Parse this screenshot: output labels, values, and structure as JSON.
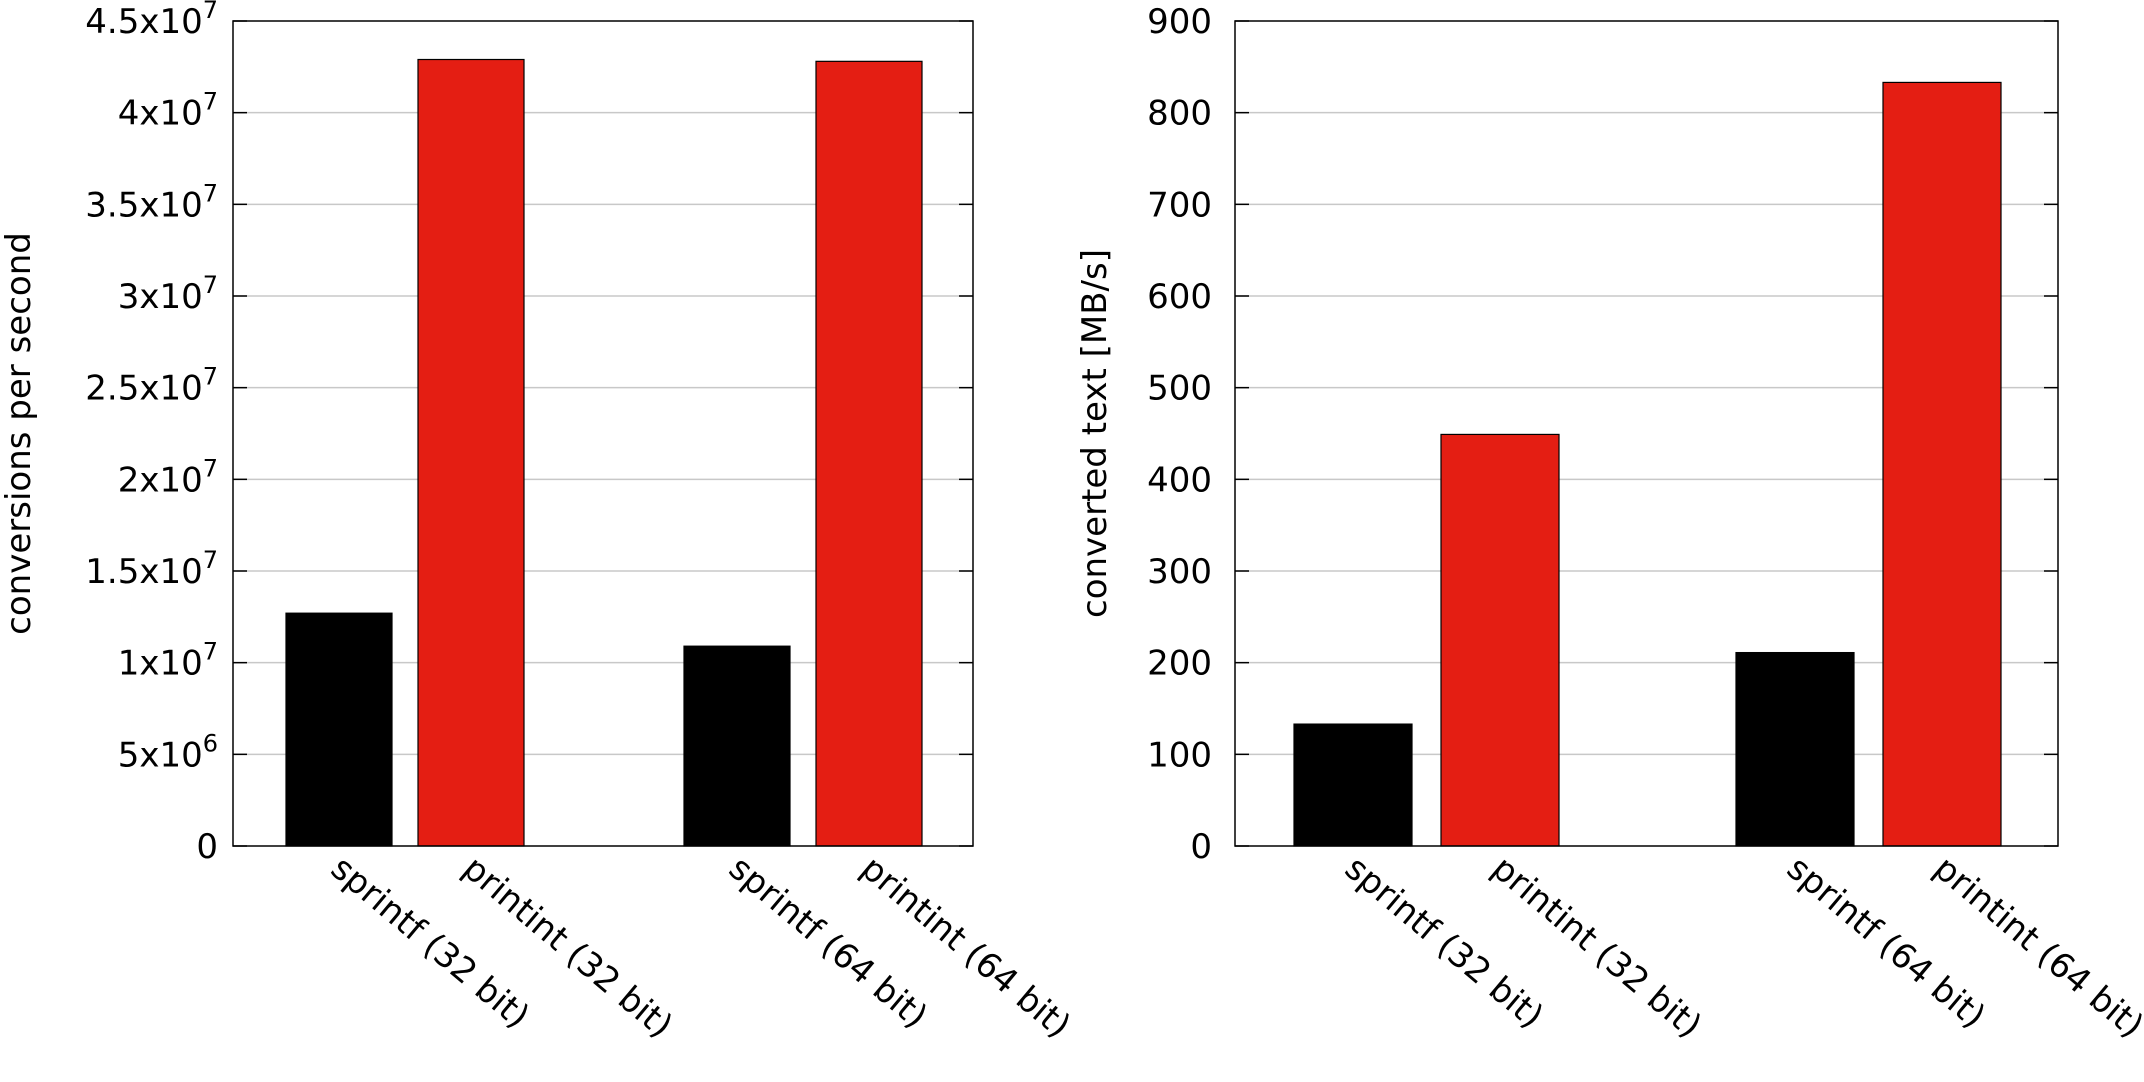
{
  "colors": {
    "sprintf": "#000000",
    "printint": "#e41e13",
    "grid": "#c8c8c8"
  },
  "chart_data": [
    {
      "type": "bar",
      "ylabel": "conversions per second",
      "xlabel": "",
      "ylim": [
        0,
        45000000
      ],
      "grid": true,
      "categories": [
        "sprintf (32 bit)",
        "printint (32 bit)",
        "sprintf (64 bit)",
        "printint (64 bit)"
      ],
      "values": [
        12700000,
        42900000,
        10900000,
        42800000
      ],
      "bar_colors": [
        "#000000",
        "#e41e13",
        "#000000",
        "#e41e13"
      ],
      "yticks": [
        {
          "value": 0,
          "mantissa": "0",
          "exponent": ""
        },
        {
          "value": 5000000,
          "mantissa": "5x10",
          "exponent": "6"
        },
        {
          "value": 10000000,
          "mantissa": "1x10",
          "exponent": "7"
        },
        {
          "value": 15000000,
          "mantissa": "1.5x10",
          "exponent": "7"
        },
        {
          "value": 20000000,
          "mantissa": "2x10",
          "exponent": "7"
        },
        {
          "value": 25000000,
          "mantissa": "2.5x10",
          "exponent": "7"
        },
        {
          "value": 30000000,
          "mantissa": "3x10",
          "exponent": "7"
        },
        {
          "value": 35000000,
          "mantissa": "3.5x10",
          "exponent": "7"
        },
        {
          "value": 40000000,
          "mantissa": "4x10",
          "exponent": "7"
        },
        {
          "value": 45000000,
          "mantissa": "4.5x10",
          "exponent": "7"
        }
      ]
    },
    {
      "type": "bar",
      "ylabel": "converted text [MB/s]",
      "xlabel": "",
      "ylim": [
        0,
        900
      ],
      "grid": true,
      "categories": [
        "sprintf (32 bit)",
        "printint (32 bit)",
        "sprintf (64 bit)",
        "printint (64 bit)"
      ],
      "values": [
        133,
        449,
        211,
        833
      ],
      "bar_colors": [
        "#000000",
        "#e41e13",
        "#000000",
        "#e41e13"
      ],
      "yticks": [
        {
          "value": 0,
          "mantissa": "0",
          "exponent": ""
        },
        {
          "value": 100,
          "mantissa": "100",
          "exponent": ""
        },
        {
          "value": 200,
          "mantissa": "200",
          "exponent": ""
        },
        {
          "value": 300,
          "mantissa": "300",
          "exponent": ""
        },
        {
          "value": 400,
          "mantissa": "400",
          "exponent": ""
        },
        {
          "value": 500,
          "mantissa": "500",
          "exponent": ""
        },
        {
          "value": 600,
          "mantissa": "600",
          "exponent": ""
        },
        {
          "value": 700,
          "mantissa": "700",
          "exponent": ""
        },
        {
          "value": 800,
          "mantissa": "800",
          "exponent": ""
        },
        {
          "value": 900,
          "mantissa": "900",
          "exponent": ""
        }
      ]
    }
  ]
}
